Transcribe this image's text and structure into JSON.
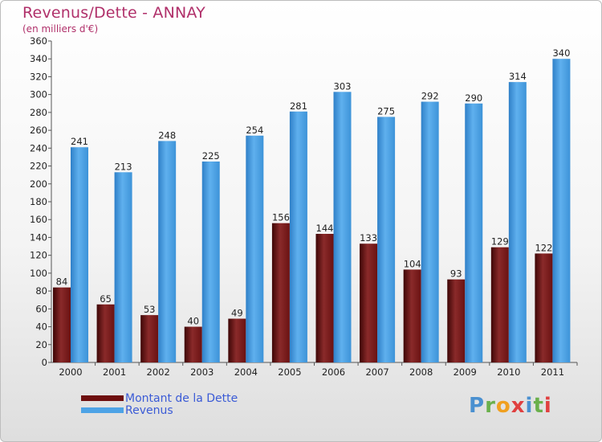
{
  "chart_data": {
    "type": "bar",
    "title": "Revenus/Dette - ANNAY",
    "subtitle": "(en milliers d'€)",
    "categories": [
      "2000",
      "2001",
      "2002",
      "2003",
      "2004",
      "2005",
      "2006",
      "2007",
      "2008",
      "2009",
      "2010",
      "2011"
    ],
    "series": [
      {
        "name": "Montant de la Dette",
        "values": [
          84,
          65,
          53,
          40,
          49,
          156,
          144,
          133,
          104,
          93,
          129,
          122
        ],
        "color": "#7a1818"
      },
      {
        "name": "Revenus",
        "values": [
          241,
          213,
          248,
          225,
          254,
          281,
          303,
          275,
          292,
          290,
          314,
          340
        ],
        "color": "#4a9fe0"
      }
    ],
    "ylim": [
      0,
      360
    ],
    "ytick_step": 20,
    "grid": false,
    "legend_position": "bottom-left"
  },
  "legend": {
    "items": [
      {
        "label": "Montant de la Dette",
        "color": "#6e0f0f"
      },
      {
        "label": "Revenus",
        "color": "#4da3e6"
      }
    ]
  },
  "logo": {
    "letters": [
      {
        "ch": "P",
        "color": "#4a90d0"
      },
      {
        "ch": "r",
        "color": "#6ab04c"
      },
      {
        "ch": "o",
        "color": "#f0a020"
      },
      {
        "ch": "x",
        "color": "#e04040"
      },
      {
        "ch": "i",
        "color": "#4a90d0"
      },
      {
        "ch": "t",
        "color": "#6ab04c"
      },
      {
        "ch": "i",
        "color": "#e04040"
      }
    ]
  }
}
